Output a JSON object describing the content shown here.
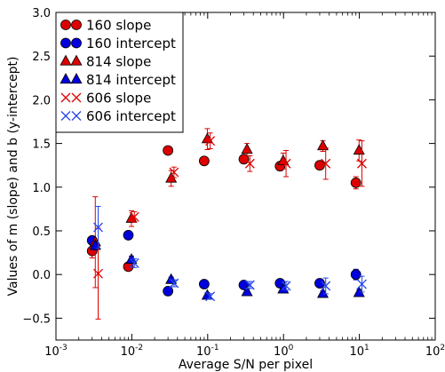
{
  "chart_data": {
    "type": "scatter",
    "title": "",
    "xlabel": "Average S/N per pixel",
    "ylabel": "Values of m (slope) and b (y-intercept)",
    "xscale": "log",
    "xlim": [
      0.001,
      100
    ],
    "ylim": [
      -0.75,
      3.0
    ],
    "x_ticks": [
      {
        "value": 0.001,
        "base": "10",
        "exp": "-3"
      },
      {
        "value": 0.01,
        "base": "10",
        "exp": "-2"
      },
      {
        "value": 0.1,
        "base": "10",
        "exp": "-1"
      },
      {
        "value": 1,
        "base": "10",
        "exp": "0"
      },
      {
        "value": 10,
        "base": "10",
        "exp": "1"
      },
      {
        "value": 100,
        "base": "10",
        "exp": "2"
      }
    ],
    "y_ticks": [
      {
        "value": -0.5,
        "label": "−0.5"
      },
      {
        "value": 0.0,
        "label": "0.0"
      },
      {
        "value": 0.5,
        "label": "0.5"
      },
      {
        "value": 1.0,
        "label": "1.0"
      },
      {
        "value": 1.5,
        "label": "1.5"
      },
      {
        "value": 2.0,
        "label": "2.0"
      },
      {
        "value": 2.5,
        "label": "2.5"
      },
      {
        "value": 3.0,
        "label": "3.0"
      }
    ],
    "grid": false,
    "legend_position": "top-left",
    "series": [
      {
        "name": "160 slope",
        "marker": "circle",
        "color": "#dd0000",
        "points": [
          {
            "x": 0.003,
            "y": 0.27,
            "err": 0.08
          },
          {
            "x": 0.009,
            "y": 0.09,
            "err": 0.04
          },
          {
            "x": 0.03,
            "y": 1.42,
            "err": 0.04
          },
          {
            "x": 0.09,
            "y": 1.3,
            "err": 0.04
          },
          {
            "x": 0.3,
            "y": 1.32,
            "err": 0.05
          },
          {
            "x": 0.9,
            "y": 1.24,
            "err": 0.05
          },
          {
            "x": 3.0,
            "y": 1.25,
            "err": 0.04
          },
          {
            "x": 9.0,
            "y": 1.05,
            "err": 0.07
          }
        ]
      },
      {
        "name": "160 intercept",
        "marker": "circle",
        "color": "#0000dd",
        "points": [
          {
            "x": 0.003,
            "y": 0.39,
            "err": 0.04
          },
          {
            "x": 0.009,
            "y": 0.45,
            "err": 0.04
          },
          {
            "x": 0.03,
            "y": -0.19,
            "err": 0.04
          },
          {
            "x": 0.09,
            "y": -0.11,
            "err": 0.03
          },
          {
            "x": 0.3,
            "y": -0.12,
            "err": 0.03
          },
          {
            "x": 0.9,
            "y": -0.1,
            "err": 0.04
          },
          {
            "x": 3.0,
            "y": -0.1,
            "err": 0.03
          },
          {
            "x": 9.0,
            "y": 0.0,
            "err": 0.06
          }
        ]
      },
      {
        "name": "814 slope",
        "marker": "triangle",
        "color": "#dd0000",
        "points": [
          {
            "x": 0.0033,
            "y": 0.37,
            "err": 0.52
          },
          {
            "x": 0.0099,
            "y": 0.64,
            "err": 0.09
          },
          {
            "x": 0.033,
            "y": 1.1,
            "err": 0.09
          },
          {
            "x": 0.099,
            "y": 1.55,
            "err": 0.12
          },
          {
            "x": 0.33,
            "y": 1.43,
            "err": 0.07
          },
          {
            "x": 0.99,
            "y": 1.3,
            "err": 0.09
          },
          {
            "x": 3.3,
            "y": 1.47,
            "err": 0.06
          },
          {
            "x": 9.9,
            "y": 1.42,
            "err": 0.12
          }
        ]
      },
      {
        "name": "814 intercept",
        "marker": "triangle",
        "color": "#0000dd",
        "points": [
          {
            "x": 0.0033,
            "y": 0.33,
            "err": 0.05
          },
          {
            "x": 0.0099,
            "y": 0.17,
            "err": 0.04
          },
          {
            "x": 0.033,
            "y": -0.06,
            "err": 0.03
          },
          {
            "x": 0.099,
            "y": -0.24,
            "err": 0.03
          },
          {
            "x": 0.33,
            "y": -0.2,
            "err": 0.03
          },
          {
            "x": 0.99,
            "y": -0.17,
            "err": 0.04
          },
          {
            "x": 3.3,
            "y": -0.22,
            "err": 0.03
          },
          {
            "x": 9.9,
            "y": -0.21,
            "err": 0.04
          }
        ]
      },
      {
        "name": "606 slope",
        "marker": "x",
        "color": "#dd0000",
        "points": [
          {
            "x": 0.0036,
            "y": 0.01,
            "err": 0.52
          },
          {
            "x": 0.0108,
            "y": 0.66,
            "err": 0.06
          },
          {
            "x": 0.036,
            "y": 1.17,
            "err": 0.06
          },
          {
            "x": 0.108,
            "y": 1.53,
            "err": 0.09
          },
          {
            "x": 0.36,
            "y": 1.27,
            "err": 0.09
          },
          {
            "x": 1.08,
            "y": 1.27,
            "err": 0.15
          },
          {
            "x": 3.6,
            "y": 1.27,
            "err": 0.18
          },
          {
            "x": 10.8,
            "y": 1.27,
            "err": 0.26
          }
        ]
      },
      {
        "name": "606 intercept",
        "marker": "x",
        "color": "#2244ee",
        "points": [
          {
            "x": 0.0036,
            "y": 0.54,
            "err": 0.24
          },
          {
            "x": 0.0108,
            "y": 0.13,
            "err": 0.05
          },
          {
            "x": 0.036,
            "y": -0.1,
            "err": 0.04
          },
          {
            "x": 0.108,
            "y": -0.25,
            "err": 0.03
          },
          {
            "x": 0.36,
            "y": -0.12,
            "err": 0.04
          },
          {
            "x": 1.08,
            "y": -0.13,
            "err": 0.05
          },
          {
            "x": 3.6,
            "y": -0.13,
            "err": 0.09
          },
          {
            "x": 10.8,
            "y": -0.11,
            "err": 0.09
          }
        ]
      }
    ]
  }
}
